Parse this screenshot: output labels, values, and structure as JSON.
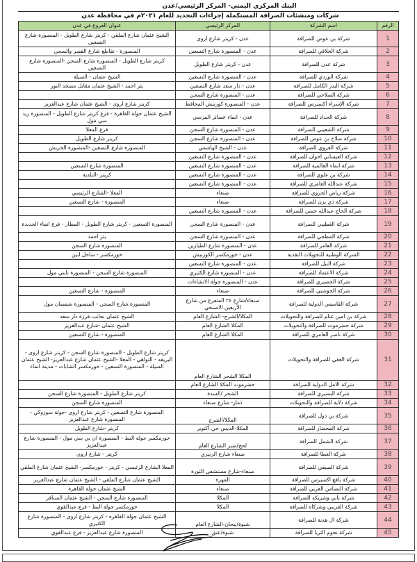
{
  "header": {
    "title": "البنك المركزي اليمني- المركز الرئيسي/عدن",
    "subtitle": "شركات ومنشئات الصرافة المستكملة إجراءات التجديد للعام ٢٠٢١م في محافظة عدن"
  },
  "table": {
    "columns": [
      "الرقم",
      "اسم الشركة",
      "المركز الرئيسي",
      "عنوان الفروع في عدن"
    ],
    "rows": [
      {
        "no": "1",
        "name": "شركة بن عوض للصرافة",
        "hq": "عدن - كريتر شارع اروى",
        "branches": "الشيخ عثمان شارع الملقي - كريتر شارع الطويل - المنصورة شارع التسعين"
      },
      {
        "no": "2",
        "name": "شركة الخلاقي للصرافة",
        "hq": "عدن - المنصورة شارع التسعين",
        "branches": "المنصورة - تقاطع شارع القصر والسجن"
      },
      {
        "no": "3",
        "name": "شركة عدن للصرافة",
        "hq": "عدن - كريتر شارع الطويل",
        "branches": "كريتر شارع الطويل - المنصورة شارع السجن -المنصورة شارع التسعين"
      },
      {
        "no": "4",
        "name": "شركة الوردي للصرافة",
        "hq": "عدن - المنصورة شارع التسعين",
        "branches": "الشيخ عثمان - السيلة"
      },
      {
        "no": "5",
        "name": "شركة البدر الكامل للصرافة",
        "hq": "عدن - دار سعد شارع التسعين",
        "branches": "بئر احمد - الشيخ عثمان مقابل مسجد النور"
      },
      {
        "no": "6",
        "name": "شركة الصلاحي للصرافة",
        "hq": "عدن - المنصورة شارع السجن",
        "branches": ""
      },
      {
        "no": "7",
        "name": "شركة الإسراء اكسبرس للصرافة",
        "hq": "عدن - المنصورة كورنيش المحافظ",
        "branches": "كريتر شارع اروى - الشيخ عثمان شارع عبدالعزيز"
      },
      {
        "no": "8",
        "name": "شركة الحداد للصرافة",
        "hq": "عدن - انماء عصائر المرسي",
        "branches": "الشيخ عثمان جولة القاهرة - فرع كريتر شارع الطويل - المنصورة ريد سي مول"
      },
      {
        "no": "9",
        "name": "شركة الشعيبي للصرافة",
        "hq": "عدن - المنصورة شارع السجن",
        "branches": "فرع المعلا"
      },
      {
        "no": "10",
        "name": "شركة صلاح بن عوض للصرافة",
        "hq": "عدن - المنصورة شارع السجن",
        "branches": "كريتر شارع الطويل"
      },
      {
        "no": "11",
        "name": "شركة العروي للصرافة",
        "hq": "عدن - الشيخ الهاشمي",
        "branches": "المنصورة شارع التسعين -المنصورة الحريش"
      },
      {
        "no": "12",
        "name": "شركة العيساني اخوان للصرافة",
        "hq": "عدن - المنصورة شارع التسعين",
        "branches": ""
      },
      {
        "no": "13",
        "name": "شركة انماء العالمية للصرافة",
        "hq": "عدن - المنصورة شارع التسعين",
        "branches": "المنصورة شارع التسعين"
      },
      {
        "no": "14",
        "name": "شركة بن علوي للصرافة",
        "hq": "عدن - المنصورة شارع التسعين",
        "branches": "كريتر -البلدية"
      },
      {
        "no": "15",
        "name": "شركة عبدالله العامري للصرافة",
        "hq": "عدن - المنصورة شارع التسعين",
        "branches": ""
      },
      {
        "no": "16",
        "name": "شركة رياض الحروي للصرافة",
        "hq": "صنعاء",
        "branches": "المعلا -الشارع الرئيسي"
      },
      {
        "no": "17",
        "name": "شركة ذي يزن للصرافة",
        "hq": "صنعاء",
        "branches": "المنصورة - شارع التسعين"
      },
      {
        "no": "18",
        "name": "شركة الحاج عبدالله حسن للصرافة",
        "hq": "عدن - المنصورة شارع التسعين",
        "branches": ""
      },
      {
        "no": "19",
        "name": "شركة القطيبي للصرافة",
        "hq": "عدن - المنصورة شارع السجن",
        "branches": "المنصورة التسعين - كريتر شارع الطويل - المطار - فرع انماء الجديدة"
      },
      {
        "no": "20",
        "name": "شركة المظحي للصرافة",
        "hq": "عدن - المنصورة شارع السجن",
        "branches": "بئر احمد"
      },
      {
        "no": "21",
        "name": "شركة العامر للصرافة",
        "hq": "عدن - المنصورة شارع الطيارين",
        "branches": "المنصورة شارع السجن"
      },
      {
        "no": "22",
        "name": "الشركة الوطنية للتحويلات النقدية",
        "hq": "عدن - خورمكسر الكورنيش",
        "branches": "خورمكسر - ساحل ابين"
      },
      {
        "no": "23",
        "name": "شركة النيل للصرافة",
        "hq": "عدن - المنصورة شارع التسعين",
        "branches": ""
      },
      {
        "no": "24",
        "name": "شركة الاعتماد للصرافة",
        "hq": "عدن - المنصورة شارع الكثيري",
        "branches": "المنصورة شارع السجن - المنصورة نايتي مول"
      },
      {
        "no": "25",
        "name": "شركة الحضيري للصرافة",
        "hq": "عدن - المنصورة جولة الانشاءات",
        "branches": ""
      },
      {
        "no": "26",
        "name": "شركة الحوشبي للصرافة",
        "hq": "صنعاء",
        "branches": "المنصورة - شارع التسعين"
      },
      {
        "no": "27",
        "name": "شركة القاسمي الدولية للصرافة",
        "hq": "صنعاء/شارع ٢٤ المتفرع من شارع الأربعين الاصبحي",
        "branches": "المنصورة شارع السجن - المنصورة شمسان مول"
      },
      {
        "no": "28",
        "name": "شركة بن امين غنام للصرافة والتحويلات",
        "hq": "المكلا/الشرج- الشارع العام",
        "branches": "الشيخ عثمان بجانب فرزة دار سعد"
      },
      {
        "no": "29",
        "name": "شركة حضرموت للصرافة والتحويلات",
        "hq": "المكلا الشارع العام",
        "branches": "الشيخ عثمان -شارع عبدالعزيز"
      },
      {
        "no": "30",
        "name": "شركة ناصر العامري للصرافة",
        "hq": "المكلا الشارع العام",
        "branches": "المنصورة - شارع التسعين"
      },
      {
        "no": "31",
        "name": "شركة العقي للصرافة والتحويلات",
        "hq": "المكلا الشحر الشارع العام",
        "branches": "كريتر شارع الطويل - المنصورة شارع السجن - كريتر شارع اروى - البريقه - التواهي - المعلا -الشيخ عثمان شارع عبدالعزيز- الشيخ عثمان السيلة - المنصورة التسعين - خورمكسر الشابات - مدينة انماء"
      },
      {
        "no": "32",
        "name": "شركة الامل الدولية للصرافة",
        "hq": "حضرموت المكلا الشارع العام",
        "branches": ""
      },
      {
        "no": "33",
        "name": "شركة البسيري للصرافة",
        "hq": "الشحر /السدة",
        "branches": "كريتر شارع الطويل - المنصورة شارع السجن"
      },
      {
        "no": "34",
        "name": "شركة دلاية للصرافة والتحويلات",
        "hq": "ذمار- شارع صنعاء",
        "branches": "المنصورة شارع السجن"
      },
      {
        "no": "35",
        "name": "شركة بن دول للصرافة",
        "hq": "المكلا/الشرج",
        "branches": "المنصورة شارع التسعين - كريتر شارع اروى -جولة سوزوكي - المنصورة شارع عبدالعزيز"
      },
      {
        "no": "36",
        "name": "شركة المحضار للصرافة",
        "hq": "المكلا-الديس حي أكتوبر",
        "branches": "كريتر -شارع الطويل"
      },
      {
        "no": "37",
        "name": "شركة الشمل للصرافة",
        "hq": "لحج/صبر الشارع العام",
        "branches": "خورمكسر جولة البط - المنصورة ان بي سي مول - المنصورة شارع عبدالعزيز"
      },
      {
        "no": "38",
        "name": "شركة العطا للصرافة",
        "hq": "صنعاء شارع الزبيري",
        "branches": "كريتر - شارع اروى"
      },
      {
        "no": "39",
        "name": "شركة الصيفي للصرافة",
        "hq": "صنعاء-شارع مستشفى الثورة",
        "branches": "المعلا الشارع الرئيسي - كريتر - خورمكسر- الشيخ عثمان شارع الملقي"
      },
      {
        "no": "40",
        "name": "شركة يافع اكسبرس للصرافة",
        "hq": "المهرة",
        "branches": "الشيخ عثمان شارع الملقي - الشيخ عثمان شارع عبدالعزيز"
      },
      {
        "no": "41",
        "name": "شركة التضامن العربي للصرافة",
        "hq": "صنعاء",
        "branches": "الشيخ عثمان جولة القاهرة"
      },
      {
        "no": "42",
        "name": "شركة باني وشريكه للصرافة",
        "hq": "المكلا",
        "branches": "المنصورة شارع السجن - الشيخ عثمان السنافر"
      },
      {
        "no": "43",
        "name": "شركة العريبي وشركاه للصرافة",
        "hq": "المكلا",
        "branches": "خورمكسر جولة البط - فرع عبدالقوي"
      },
      {
        "no": "44",
        "name": "شركة ال هدنة للصرافة",
        "hq": "شبوة/بيحان-الشارع العام",
        "branches": "الشيخ عثمان جولة القاهرة - كريتر شارع اروى - المنصورة شارع الكثيري"
      },
      {
        "no": "45",
        "name": "شركة نجوم الثريا للصرافة",
        "hq": "شبوة/عتق",
        "branches": "المنصورة شارع عبدالعزيز - فرع عبدالقوي"
      }
    ]
  },
  "colors": {
    "header_bg": "#b9d99c",
    "number_bg": "#f1b7bf"
  }
}
